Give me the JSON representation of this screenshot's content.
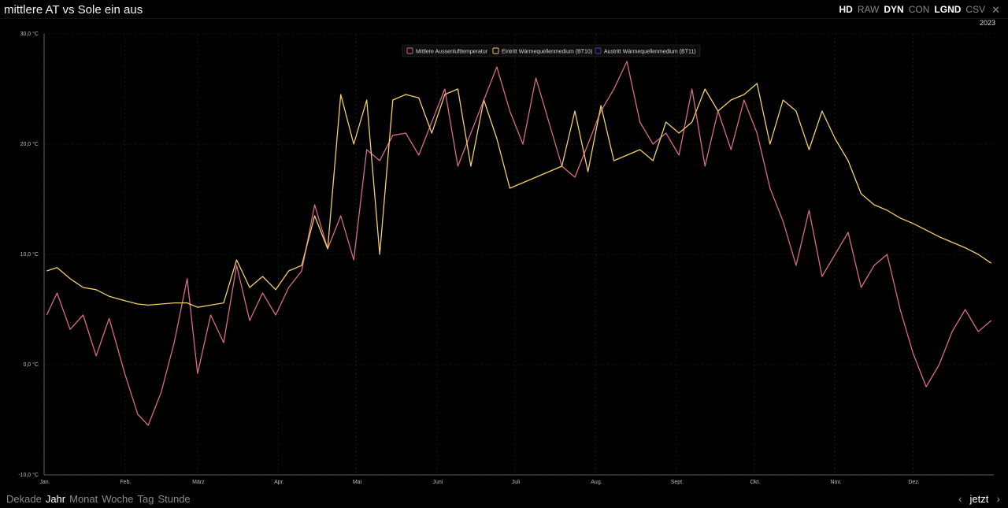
{
  "header": {
    "title": "mittlere AT vs Sole ein aus",
    "toggles": [
      {
        "label": "HD",
        "active": true
      },
      {
        "label": "RAW",
        "active": false
      },
      {
        "label": "DYN",
        "active": true
      },
      {
        "label": "CON",
        "active": false
      },
      {
        "label": "LGND",
        "active": true
      },
      {
        "label": "CSV",
        "active": false
      }
    ],
    "close_icon": "close-icon",
    "year": "2023"
  },
  "footer": {
    "ranges": [
      "Dekade",
      "Jahr",
      "Monat",
      "Woche",
      "Tag",
      "Stunde"
    ],
    "active_range": "Jahr",
    "now_label": "jetzt",
    "prev_icon": "chevron-left-icon",
    "next_icon": "chevron-right-icon"
  },
  "chart_data": {
    "type": "line",
    "ylim": [
      -10,
      30
    ],
    "yticks": [
      "-10,0 °C",
      "0,0 °C",
      "10,0 °C",
      "20,0 °C",
      "30,0 °C"
    ],
    "ytick_values": [
      -10,
      0,
      10,
      20,
      30
    ],
    "months": [
      "Jan.",
      "Feb.",
      "März",
      "Apr.",
      "Mai",
      "Juni",
      "Juli",
      "Aug.",
      "Sept.",
      "Okt.",
      "Nov.",
      "Dez."
    ],
    "legend_position": "top-center",
    "grid": true,
    "series": [
      {
        "name": "Mittlere Aussenlufttemperatur",
        "color": "#d86a8a",
        "x": [
          1,
          5,
          10,
          15,
          20,
          25,
          31,
          36,
          40,
          45,
          50,
          55,
          59,
          64,
          69,
          74,
          79,
          84,
          89,
          94,
          99,
          104,
          109,
          114,
          119,
          124,
          129,
          134,
          139,
          144,
          149,
          154,
          159,
          164,
          169,
          174,
          179,
          184,
          189,
          194,
          199,
          204,
          209,
          214,
          219,
          224,
          229,
          234,
          239,
          244,
          249,
          254,
          259,
          264,
          269,
          274,
          279,
          284,
          289,
          294,
          299,
          304,
          309,
          314,
          319,
          324,
          329,
          334,
          339,
          344,
          349,
          354,
          359,
          364
        ],
        "values": [
          4.5,
          6.5,
          3.2,
          4.5,
          0.8,
          4.2,
          -0.8,
          -4.5,
          -5.5,
          -2.5,
          2.0,
          7.8,
          -0.8,
          4.5,
          2.0,
          9.0,
          4.0,
          6.5,
          4.5,
          7.0,
          8.5,
          14.5,
          10.5,
          13.5,
          9.5,
          19.5,
          18.5,
          20.8,
          21.0,
          19.0,
          22.0,
          25.0,
          18.0,
          21.0,
          24.0,
          27.0,
          23.0,
          20.0,
          26.0,
          22.0,
          18.0,
          17.0,
          20.0,
          23.0,
          25.0,
          27.5,
          22.0,
          20.0,
          21.0,
          19.0,
          25.0,
          18.0,
          23.0,
          19.5,
          24.0,
          21.0,
          16.0,
          13.0,
          9.0,
          14.0,
          8.0,
          10.0,
          12.0,
          7.0,
          9.0,
          10.0,
          5.0,
          1.0,
          -2.0,
          0.0,
          3.0,
          5.0,
          3.0,
          4.0
        ]
      },
      {
        "name": "Eintritt Wärmequellenmedium (BT10)",
        "color": "#f1cf6a",
        "x": [
          1,
          5,
          10,
          15,
          20,
          25,
          31,
          36,
          40,
          45,
          50,
          55,
          59,
          64,
          69,
          74,
          79,
          84,
          89,
          94,
          99,
          104,
          109,
          114,
          119,
          124,
          129,
          134,
          139,
          144,
          149,
          154,
          159,
          164,
          169,
          174,
          179,
          184,
          189,
          194,
          199,
          204,
          209,
          214,
          219,
          224,
          229,
          234,
          239,
          244,
          249,
          254,
          259,
          264,
          269,
          274,
          279,
          284,
          289,
          294,
          299,
          304,
          309,
          314,
          319,
          324,
          329,
          334,
          339,
          344,
          349,
          354,
          359,
          364
        ],
        "values": [
          8.5,
          8.8,
          7.8,
          7.0,
          6.8,
          6.2,
          5.8,
          5.5,
          5.4,
          5.5,
          5.6,
          5.6,
          5.2,
          5.4,
          5.6,
          9.5,
          7.0,
          8.0,
          6.8,
          8.5,
          9.0,
          13.5,
          10.5,
          24.5,
          20.0,
          24.0,
          10.0,
          24.0,
          24.5,
          24.2,
          21.0,
          24.5,
          25.0,
          18.0,
          24.0,
          20.5,
          16.0,
          16.5,
          17.0,
          17.5,
          18.0,
          23.0,
          17.5,
          23.5,
          18.5,
          19.0,
          19.5,
          18.5,
          22.0,
          21.0,
          22.0,
          25.0,
          23.0,
          24.0,
          24.5,
          25.5,
          20.0,
          24.0,
          23.0,
          19.5,
          23.0,
          20.5,
          18.5,
          15.5,
          14.5,
          14.0,
          13.3,
          12.8,
          12.2,
          11.6,
          11.1,
          10.6,
          10.0,
          9.2
        ]
      },
      {
        "name": "Austritt Wärmequellenmedium (BT11)",
        "color": "#3a4aa8",
        "x": [],
        "values": []
      }
    ]
  }
}
